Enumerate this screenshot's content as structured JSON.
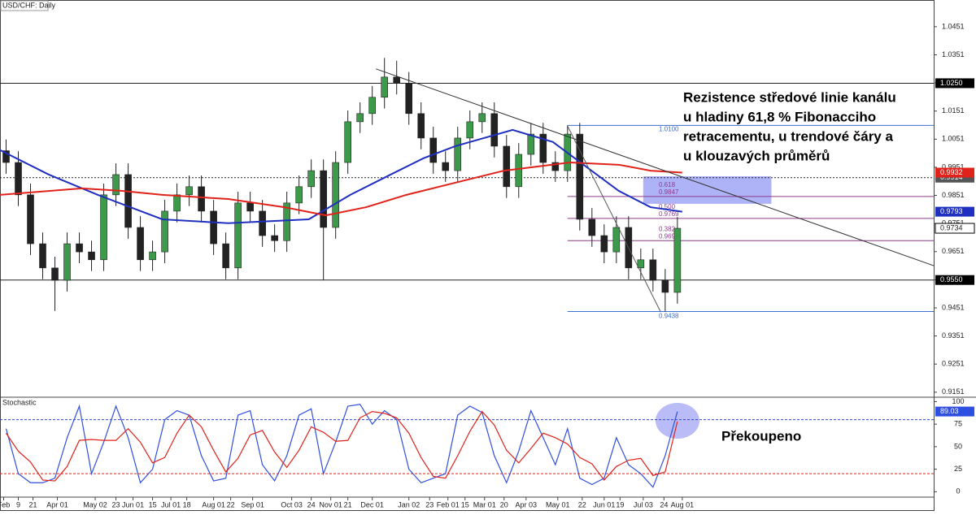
{
  "chart_data": {
    "type": "candlestick",
    "title": "USD/CHF: Daily",
    "up_color": "#3c9a4a",
    "down_color": "#222222",
    "x": [
      0.5,
      1.5,
      2.5,
      3.5,
      4.5,
      5.5,
      6.5,
      7.5,
      8.5,
      9.5,
      10.5,
      11.5,
      12.5,
      13.5,
      14.5,
      15.5,
      16.5,
      17.5,
      18.5,
      19.5,
      20.5,
      21.5,
      22.5,
      23.5,
      24.5,
      25.5,
      26.5,
      27.5,
      28.5,
      29.5,
      30.5,
      31.5,
      32.5,
      33.5,
      34.5,
      35.5,
      36.5,
      37.5,
      38.5,
      39.5,
      40.5,
      41.5,
      42.5,
      43.5,
      44.5,
      45.5,
      46.5,
      47.5,
      48.5,
      49.5,
      50.5,
      51.5,
      52.5,
      53.5,
      54.5,
      55.5
    ],
    "open": [
      1.001,
      0.9968,
      0.9853,
      0.9679,
      0.9593,
      0.9549,
      0.9679,
      0.965,
      0.9622,
      0.9853,
      0.9925,
      0.9737,
      0.9622,
      0.965,
      0.9795,
      0.9853,
      0.9882,
      0.9795,
      0.9679,
      0.9593,
      0.9824,
      0.9795,
      0.9708,
      0.969,
      0.9824,
      0.9882,
      0.9939,
      0.9737,
      0.9968,
      1.0113,
      1.0142,
      1.02,
      1.0272,
      1.025,
      1.0142,
      1.0055,
      0.9968,
      0.9939,
      1.0055,
      1.0113,
      1.0142,
      1.0026,
      0.9882,
      0.9997,
      1.0069,
      0.9968,
      0.9939,
      1.0069,
      0.9766,
      0.9708,
      0.965,
      0.9737,
      0.9593,
      0.9622,
      0.9549,
      0.9506
    ],
    "high": [
      1.005,
      1.0008,
      0.9893,
      0.9719,
      0.9633,
      0.9719,
      0.9719,
      0.969,
      0.9893,
      0.9965,
      0.9965,
      0.9777,
      0.969,
      0.9835,
      0.9893,
      0.9922,
      0.9922,
      0.9835,
      0.9719,
      0.9864,
      0.9864,
      0.9835,
      0.9748,
      0.9864,
      0.9922,
      0.9979,
      0.9979,
      1.0008,
      1.0153,
      1.0182,
      1.024,
      1.034,
      1.033,
      1.029,
      1.0182,
      1.0095,
      1.0008,
      1.0095,
      1.0153,
      1.0182,
      1.0182,
      1.0066,
      1.0037,
      1.0109,
      1.0109,
      1.0008,
      1.01,
      1.0109,
      0.9806,
      0.9748,
      0.9777,
      0.9777,
      0.9662,
      0.9662,
      0.9589,
      0.9774
    ],
    "low": [
      0.9928,
      0.9813,
      0.9639,
      0.9553,
      0.944,
      0.9509,
      0.961,
      0.9582,
      0.9582,
      0.9813,
      0.9697,
      0.9582,
      0.9582,
      0.961,
      0.9755,
      0.9813,
      0.9755,
      0.9639,
      0.9553,
      0.9553,
      0.9755,
      0.9668,
      0.965,
      0.965,
      0.9784,
      0.9842,
      0.955,
      0.9697,
      0.9928,
      1.0073,
      1.0102,
      1.016,
      1.021,
      1.0102,
      1.0015,
      0.9928,
      0.9899,
      0.9899,
      1.0015,
      1.0073,
      0.9986,
      0.9842,
      0.9842,
      0.9957,
      0.9928,
      0.9899,
      0.9899,
      0.9726,
      0.9668,
      0.961,
      0.961,
      0.9553,
      0.9553,
      0.9509,
      0.9438,
      0.9466
    ],
    "close": [
      0.9968,
      0.9853,
      0.9679,
      0.9593,
      0.9549,
      0.9679,
      0.965,
      0.9622,
      0.9853,
      0.9925,
      0.9737,
      0.9622,
      0.965,
      0.9795,
      0.9853,
      0.9882,
      0.9795,
      0.9679,
      0.9593,
      0.9824,
      0.9795,
      0.9708,
      0.969,
      0.9824,
      0.9882,
      0.9939,
      0.9737,
      0.9968,
      1.0113,
      1.0142,
      1.02,
      1.0272,
      1.025,
      1.0142,
      1.0055,
      0.9968,
      0.9939,
      1.0055,
      1.0113,
      1.0142,
      1.0026,
      0.9882,
      0.9997,
      1.0069,
      0.9968,
      0.9939,
      1.0069,
      0.9766,
      0.9708,
      0.965,
      0.9737,
      0.9593,
      0.9622,
      0.9549,
      0.9506,
      0.9734
    ],
    "xlim": [
      0,
      76.5
    ],
    "xticks": [
      {
        "value": 0.3,
        "label": "Feb"
      },
      {
        "value": 1.5,
        "label": "9"
      },
      {
        "value": 2.7,
        "label": "21"
      },
      {
        "value": 4.7,
        "label": "Apr 01"
      },
      {
        "value": 7.8,
        "label": "May 02"
      },
      {
        "value": 9.5,
        "label": "23"
      },
      {
        "value": 10.9,
        "label": "Jun 01"
      },
      {
        "value": 12.5,
        "label": "15"
      },
      {
        "value": 14,
        "label": "Jul 01"
      },
      {
        "value": 15.3,
        "label": "18"
      },
      {
        "value": 17.5,
        "label": "Aug 01"
      },
      {
        "value": 18.9,
        "label": "22"
      },
      {
        "value": 20.7,
        "label": "Sep 01"
      },
      {
        "value": 23.9,
        "label": "Oct 03"
      },
      {
        "value": 25.5,
        "label": "24"
      },
      {
        "value": 27.1,
        "label": "Nov 01"
      },
      {
        "value": 28.5,
        "label": "21"
      },
      {
        "value": 30.5,
        "label": "Dec 01"
      },
      {
        "value": 33.5,
        "label": "Jan 02"
      },
      {
        "value": 35.2,
        "label": "23"
      },
      {
        "value": 36.7,
        "label": "Feb 01"
      },
      {
        "value": 38.1,
        "label": "15"
      },
      {
        "value": 39.7,
        "label": "Mar 01"
      },
      {
        "value": 41.3,
        "label": "20"
      },
      {
        "value": 43.1,
        "label": "Apr 03"
      },
      {
        "value": 45.7,
        "label": "May 01"
      },
      {
        "value": 47.7,
        "label": "22"
      },
      {
        "value": 49.5,
        "label": "Jun 01"
      },
      {
        "value": 50.8,
        "label": "19"
      },
      {
        "value": 52.7,
        "label": "Jul 03"
      },
      {
        "value": 54.4,
        "label": "24"
      },
      {
        "value": 55.9,
        "label": "Aug 01"
      }
    ],
    "ylim": [
      0.9136,
      1.0546
    ],
    "yticks": [
      0.9151,
      0.9251,
      0.9351,
      0.9451,
      0.9551,
      0.9651,
      0.9751,
      0.9851,
      0.9951,
      1.0051,
      1.0151,
      1.0251,
      1.0351,
      1.0451
    ],
    "moving_averages": [
      {
        "color": "#1f2fbf",
        "x": [
          0,
          4,
          8,
          13.3,
          18.7,
          25.3,
          28.7,
          32,
          34.7,
          37.3,
          42,
          45.3,
          48,
          50.7,
          53.3,
          55.9
        ],
        "values": [
          1.0012,
          0.9925,
          0.9853,
          0.9766,
          0.9752,
          0.9766,
          0.9853,
          0.9925,
          0.9983,
          1.0026,
          1.0084,
          1.0041,
          0.9954,
          0.9867,
          0.9809,
          0.9793
        ]
      },
      {
        "color": "#e0221b",
        "x": [
          0,
          6.7,
          10,
          13.3,
          18.7,
          23.3,
          26.7,
          30,
          33.3,
          37.3,
          41.3,
          46.7,
          50.7,
          53.3,
          55.9
        ],
        "values": [
          0.9853,
          0.9876,
          0.9867,
          0.9853,
          0.9838,
          0.9809,
          0.978,
          0.9809,
          0.9853,
          0.9896,
          0.9939,
          0.9968,
          0.996,
          0.9939,
          0.9932
        ]
      }
    ],
    "trendlines": [
      {
        "color": "#333333",
        "x": [
          30.8,
          76.5
        ],
        "values": [
          1.0301,
          0.9601
        ]
      },
      {
        "color": "#555555",
        "x": [
          46.5,
          54.1
        ],
        "values": [
          1.0098,
          0.9439
        ]
      }
    ],
    "levels": [
      {
        "value": 1.025,
        "label": "1.0250",
        "style": "solid"
      },
      {
        "value": 0.955,
        "label": "0.9550",
        "style": "solid"
      },
      {
        "value": 0.9914,
        "label": "0.9914",
        "style": "dotted"
      }
    ],
    "fib": {
      "x": [
        46.5,
        76.5
      ],
      "levels": [
        {
          "value": 1.01,
          "label": "1.0100",
          "color": "#3d6fd1"
        },
        {
          "value": 0.9847,
          "label": "0.9847",
          "ratio": "0.618",
          "color": "#8e3a8e"
        },
        {
          "value": 0.9769,
          "label": "0.9769",
          "ratio": "0.500",
          "color": "#8e3a8e"
        },
        {
          "value": 0.969,
          "label": "0.9690",
          "ratio": "0.382",
          "color": "#8e3a8e"
        },
        {
          "value": 0.9438,
          "label": "0.9438",
          "color": "#3d6fd1"
        }
      ]
    },
    "zone": {
      "x": [
        52.7,
        63.2
      ],
      "y": [
        0.9821,
        0.9919
      ],
      "color": "#6b73f0"
    },
    "annotation": [
      "Rezistence středové linie kanálu",
      "u hladiny 61,8 % Fibonacciho",
      "retracementu, u trendové čáry a",
      "u klouzavých průměrů"
    ],
    "stochastic": {
      "title": "Stochastic",
      "ylim": [
        -6,
        104
      ],
      "yticks": [
        0,
        25,
        50,
        75,
        100
      ],
      "levels": [
        {
          "value": 80,
          "color": "#3344cc"
        },
        {
          "value": 20,
          "color": "#e0221b"
        }
      ],
      "series": [
        {
          "color": "#2f4fe0",
          "values": [
            70,
            20,
            10,
            10,
            15,
            60,
            95,
            20,
            55,
            95,
            60,
            10,
            25,
            80,
            90,
            85,
            40,
            12,
            15,
            85,
            90,
            30,
            12,
            40,
            85,
            92,
            20,
            55,
            95,
            97,
            75,
            90,
            80,
            25,
            10,
            15,
            20,
            85,
            95,
            88,
            40,
            10,
            45,
            90,
            60,
            30,
            70,
            15,
            8,
            15,
            60,
            30,
            20,
            5,
            40,
            89.03
          ]
        },
        {
          "color": "#e0221b",
          "values": [
            65,
            45,
            33,
            13,
            12,
            28,
            57,
            58,
            57,
            57,
            70,
            55,
            32,
            38,
            65,
            85,
            72,
            46,
            22,
            37,
            63,
            68,
            44,
            27,
            46,
            72,
            66,
            56,
            57,
            82,
            89,
            87,
            82,
            65,
            38,
            17,
            15,
            40,
            67,
            89,
            74,
            46,
            32,
            48,
            65,
            60,
            53,
            38,
            31,
            13,
            28,
            35,
            37,
            18,
            22,
            78
          ]
        }
      ],
      "note": "Překoupeno"
    }
  }
}
